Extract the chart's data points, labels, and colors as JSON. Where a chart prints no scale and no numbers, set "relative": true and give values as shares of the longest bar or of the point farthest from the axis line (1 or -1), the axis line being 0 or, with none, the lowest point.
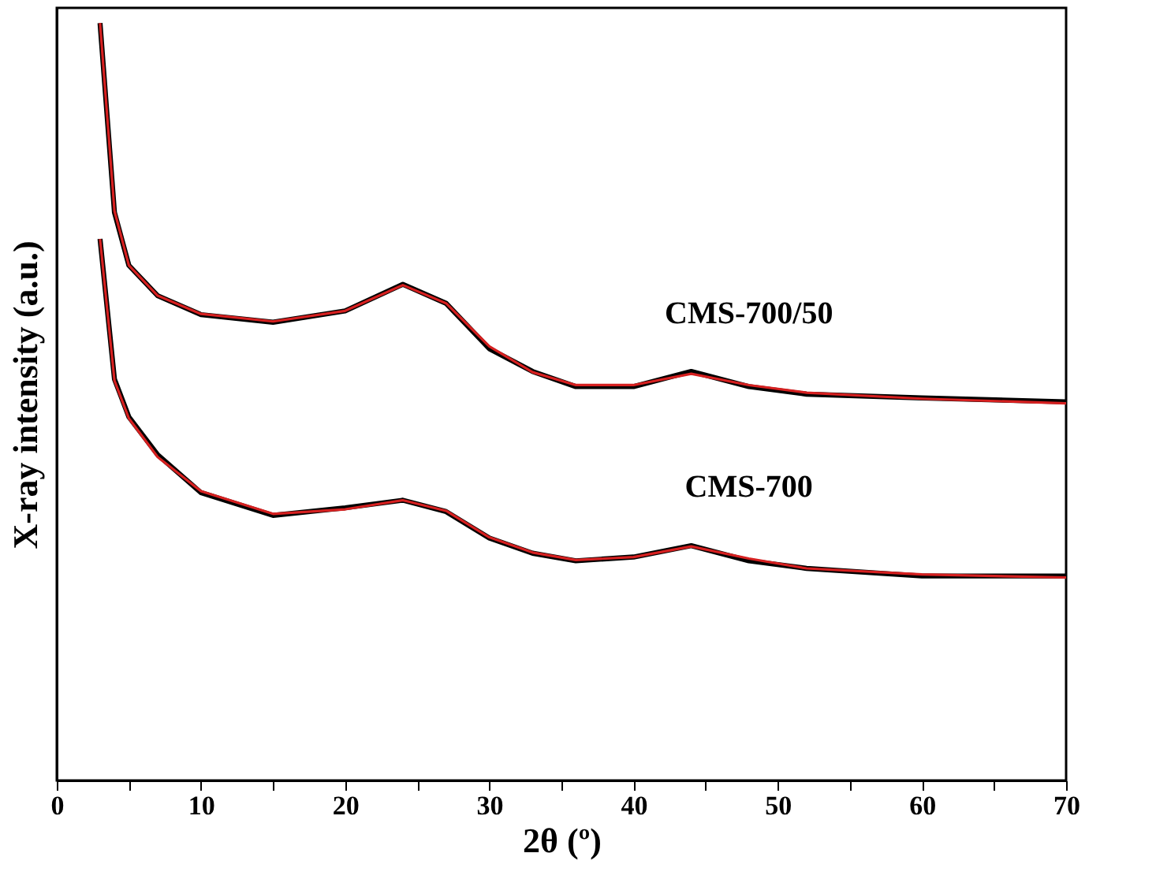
{
  "chart_data": {
    "type": "line",
    "xlabel": "2θ (º)",
    "ylabel": "X-ray intensity (a.u.)",
    "relative": true,
    "grid": false,
    "marker": "none",
    "line_style": "solid",
    "x": [
      3,
      4,
      5,
      7,
      10,
      15,
      20,
      24,
      27,
      30,
      33,
      36,
      40,
      44,
      48,
      52,
      60,
      70
    ],
    "xlim": [
      0,
      70
    ],
    "xticks": [
      0,
      {
        "value": 5,
        "label": null
      },
      10,
      {
        "value": 15,
        "label": null
      },
      20,
      {
        "value": 25,
        "label": null
      },
      30,
      {
        "value": 35,
        "label": null
      },
      40,
      {
        "value": 45,
        "label": null
      },
      50,
      {
        "value": 55,
        "label": null
      },
      60,
      {
        "value": 65,
        "label": null
      },
      70
    ],
    "tick_labels": "x",
    "series": [
      {
        "color": "#000000",
        "values": [
          1.0,
          0.75,
          0.68,
          0.64,
          0.615,
          0.605,
          0.62,
          0.655,
          0.63,
          0.57,
          0.54,
          0.52,
          0.52,
          0.54,
          0.52,
          0.51,
          0.505,
          0.5
        ]
      },
      {
        "name": "CMS-700/50",
        "color": "#d62020",
        "values": [
          1.0,
          0.752,
          0.68,
          0.64,
          0.616,
          0.606,
          0.62,
          0.654,
          0.63,
          0.573,
          0.539,
          0.522,
          0.522,
          0.537,
          0.522,
          0.512,
          0.504,
          0.498
        ]
      },
      {
        "color": "#000000",
        "values": [
          0.715,
          0.53,
          0.48,
          0.43,
          0.38,
          0.35,
          0.36,
          0.37,
          0.355,
          0.32,
          0.3,
          0.29,
          0.295,
          0.31,
          0.29,
          0.28,
          0.27,
          0.27
        ]
      },
      {
        "name": "CMS-700",
        "color": "#d62020",
        "values": [
          0.715,
          0.528,
          0.478,
          0.427,
          0.382,
          0.352,
          0.358,
          0.37,
          0.356,
          0.321,
          0.301,
          0.291,
          0.295,
          0.309,
          0.293,
          0.28,
          0.272,
          0.268
        ]
      }
    ]
  }
}
